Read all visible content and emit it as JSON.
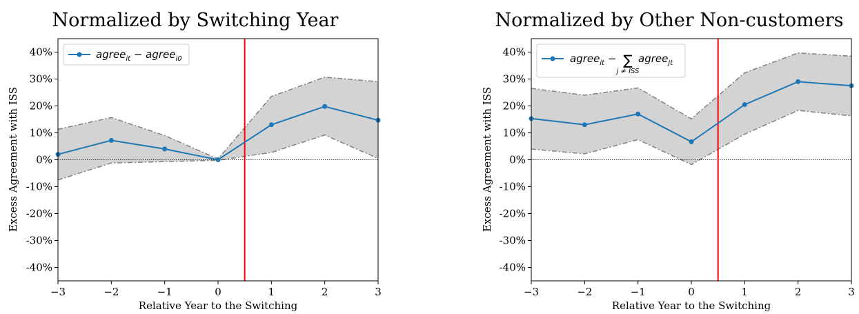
{
  "chart_data": [
    {
      "type": "line",
      "title": "Normalized by Switching Year",
      "xlabel": "Relative Year to the Switching",
      "ylabel": "Excess Agreement with ISS",
      "xlim": [
        -3,
        3
      ],
      "ylim": [
        -0.45,
        0.45
      ],
      "x_ticks": [
        -3,
        -2,
        -1,
        0,
        1,
        2,
        3
      ],
      "x_tick_labels": [
        "−3",
        "−2",
        "−1",
        "0",
        "1",
        "2",
        "3"
      ],
      "y_ticks": [
        -0.4,
        -0.3,
        -0.2,
        -0.1,
        0,
        0.1,
        0.2,
        0.3,
        0.4
      ],
      "y_tick_labels": [
        "-40%",
        "-30%",
        "-20%",
        "-10%",
        "0%",
        "10%",
        "20%",
        "30%",
        "40%"
      ],
      "x": [
        -3,
        -2,
        -1,
        0,
        1,
        2,
        3
      ],
      "series": [
        {
          "values": [
            0.02,
            0.072,
            0.04,
            0.0,
            0.13,
            0.198,
            0.147
          ],
          "ci_upper": [
            0.113,
            0.157,
            0.09,
            0.003,
            0.235,
            0.307,
            0.29
          ],
          "ci_lower": [
            -0.075,
            -0.012,
            -0.007,
            -0.002,
            0.027,
            0.092,
            0.005
          ],
          "color": "#1f77b4"
        }
      ],
      "legend": {
        "location": "upper-left",
        "label_main": "agree",
        "label_sub1": "it",
        "label_minus": " − agree",
        "label_sub2": "i0"
      },
      "vline_x": 0.5,
      "vline_color": "#ff0000",
      "hline_y": 0,
      "band_color": "#d3d3d3"
    },
    {
      "type": "line",
      "title": "Normalized by Other Non-customers",
      "xlabel": "Relative Year to the Switching",
      "ylabel": "Excess Agreement with ISS",
      "xlim": [
        -3,
        3
      ],
      "ylim": [
        -0.45,
        0.45
      ],
      "x_ticks": [
        -3,
        -2,
        -1,
        0,
        1,
        2,
        3
      ],
      "x_tick_labels": [
        "−3",
        "−2",
        "−1",
        "0",
        "1",
        "2",
        "3"
      ],
      "y_ticks": [
        -0.4,
        -0.3,
        -0.2,
        -0.1,
        0,
        0.1,
        0.2,
        0.3,
        0.4
      ],
      "y_tick_labels": [
        "-40%",
        "-30%",
        "-20%",
        "-10%",
        "0%",
        "10%",
        "20%",
        "30%",
        "40%"
      ],
      "x": [
        -3,
        -2,
        -1,
        0,
        1,
        2,
        3
      ],
      "series": [
        {
          "values": [
            0.153,
            0.13,
            0.17,
            0.067,
            0.205,
            0.29,
            0.275
          ],
          "ci_upper": [
            0.265,
            0.24,
            0.267,
            0.152,
            0.323,
            0.397,
            0.385
          ],
          "ci_lower": [
            0.04,
            0.022,
            0.075,
            -0.018,
            0.095,
            0.183,
            0.163
          ],
          "color": "#1f77b4"
        }
      ],
      "legend": {
        "location": "upper-left",
        "label_main": "agree",
        "label_sub1": "it",
        "label_minus": " − ",
        "label_sum": "∑",
        "label_sum_sub": "j ≠ ISS",
        "label_after": "agree",
        "label_sub2": "jt"
      },
      "vline_x": 0.5,
      "vline_color": "#ff0000",
      "hline_y": 0,
      "band_color": "#d3d3d3"
    }
  ]
}
